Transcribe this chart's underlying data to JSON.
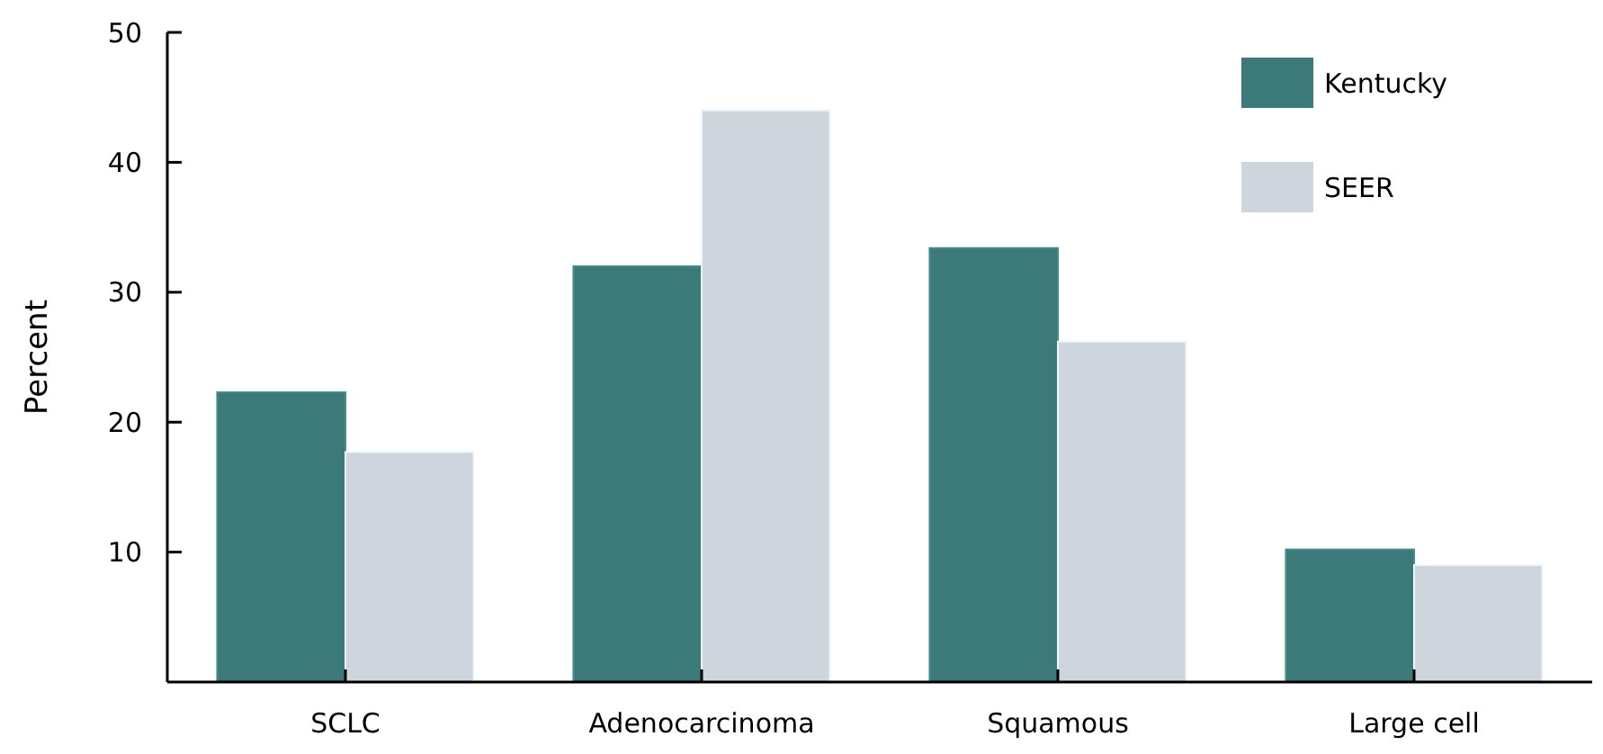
{
  "chart_data": {
    "type": "bar",
    "ylabel": "Percent",
    "categories": [
      "SCLC",
      "Adenocarcinoma",
      "Squamous",
      "Large cell"
    ],
    "series": [
      {
        "name": "Kentucky",
        "color": "#3b7a78",
        "values": [
          22.3,
          32,
          33.4,
          10.2
        ]
      },
      {
        "name": "SEER",
        "color": "#ced5dc",
        "values": [
          17.7,
          44,
          26.2,
          9
        ]
      }
    ],
    "ylim": [
      0,
      50
    ],
    "yticks": [
      10,
      20,
      30,
      40,
      50
    ],
    "grid": false,
    "legend": "top right"
  }
}
